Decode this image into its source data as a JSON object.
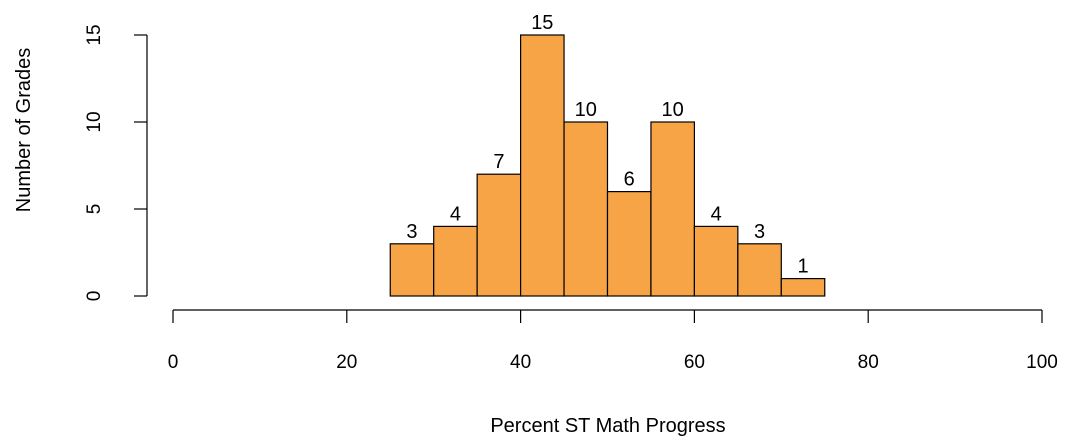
{
  "chart_data": {
    "type": "bar",
    "bin_edges": [
      25,
      30,
      35,
      40,
      45,
      50,
      55,
      60,
      65,
      70,
      75
    ],
    "values": [
      3,
      4,
      7,
      15,
      10,
      6,
      10,
      4,
      3,
      1
    ],
    "title": "",
    "xlabel": "Percent ST Math Progress",
    "ylabel": "Number of Grades",
    "xlim": [
      0,
      100
    ],
    "ylim": [
      0,
      15
    ],
    "x_ticks": [
      0,
      20,
      40,
      60,
      80,
      100
    ],
    "y_ticks": [
      0,
      5,
      10,
      15
    ],
    "bar_color": "#F7A446",
    "grid": false,
    "legend": "none"
  }
}
